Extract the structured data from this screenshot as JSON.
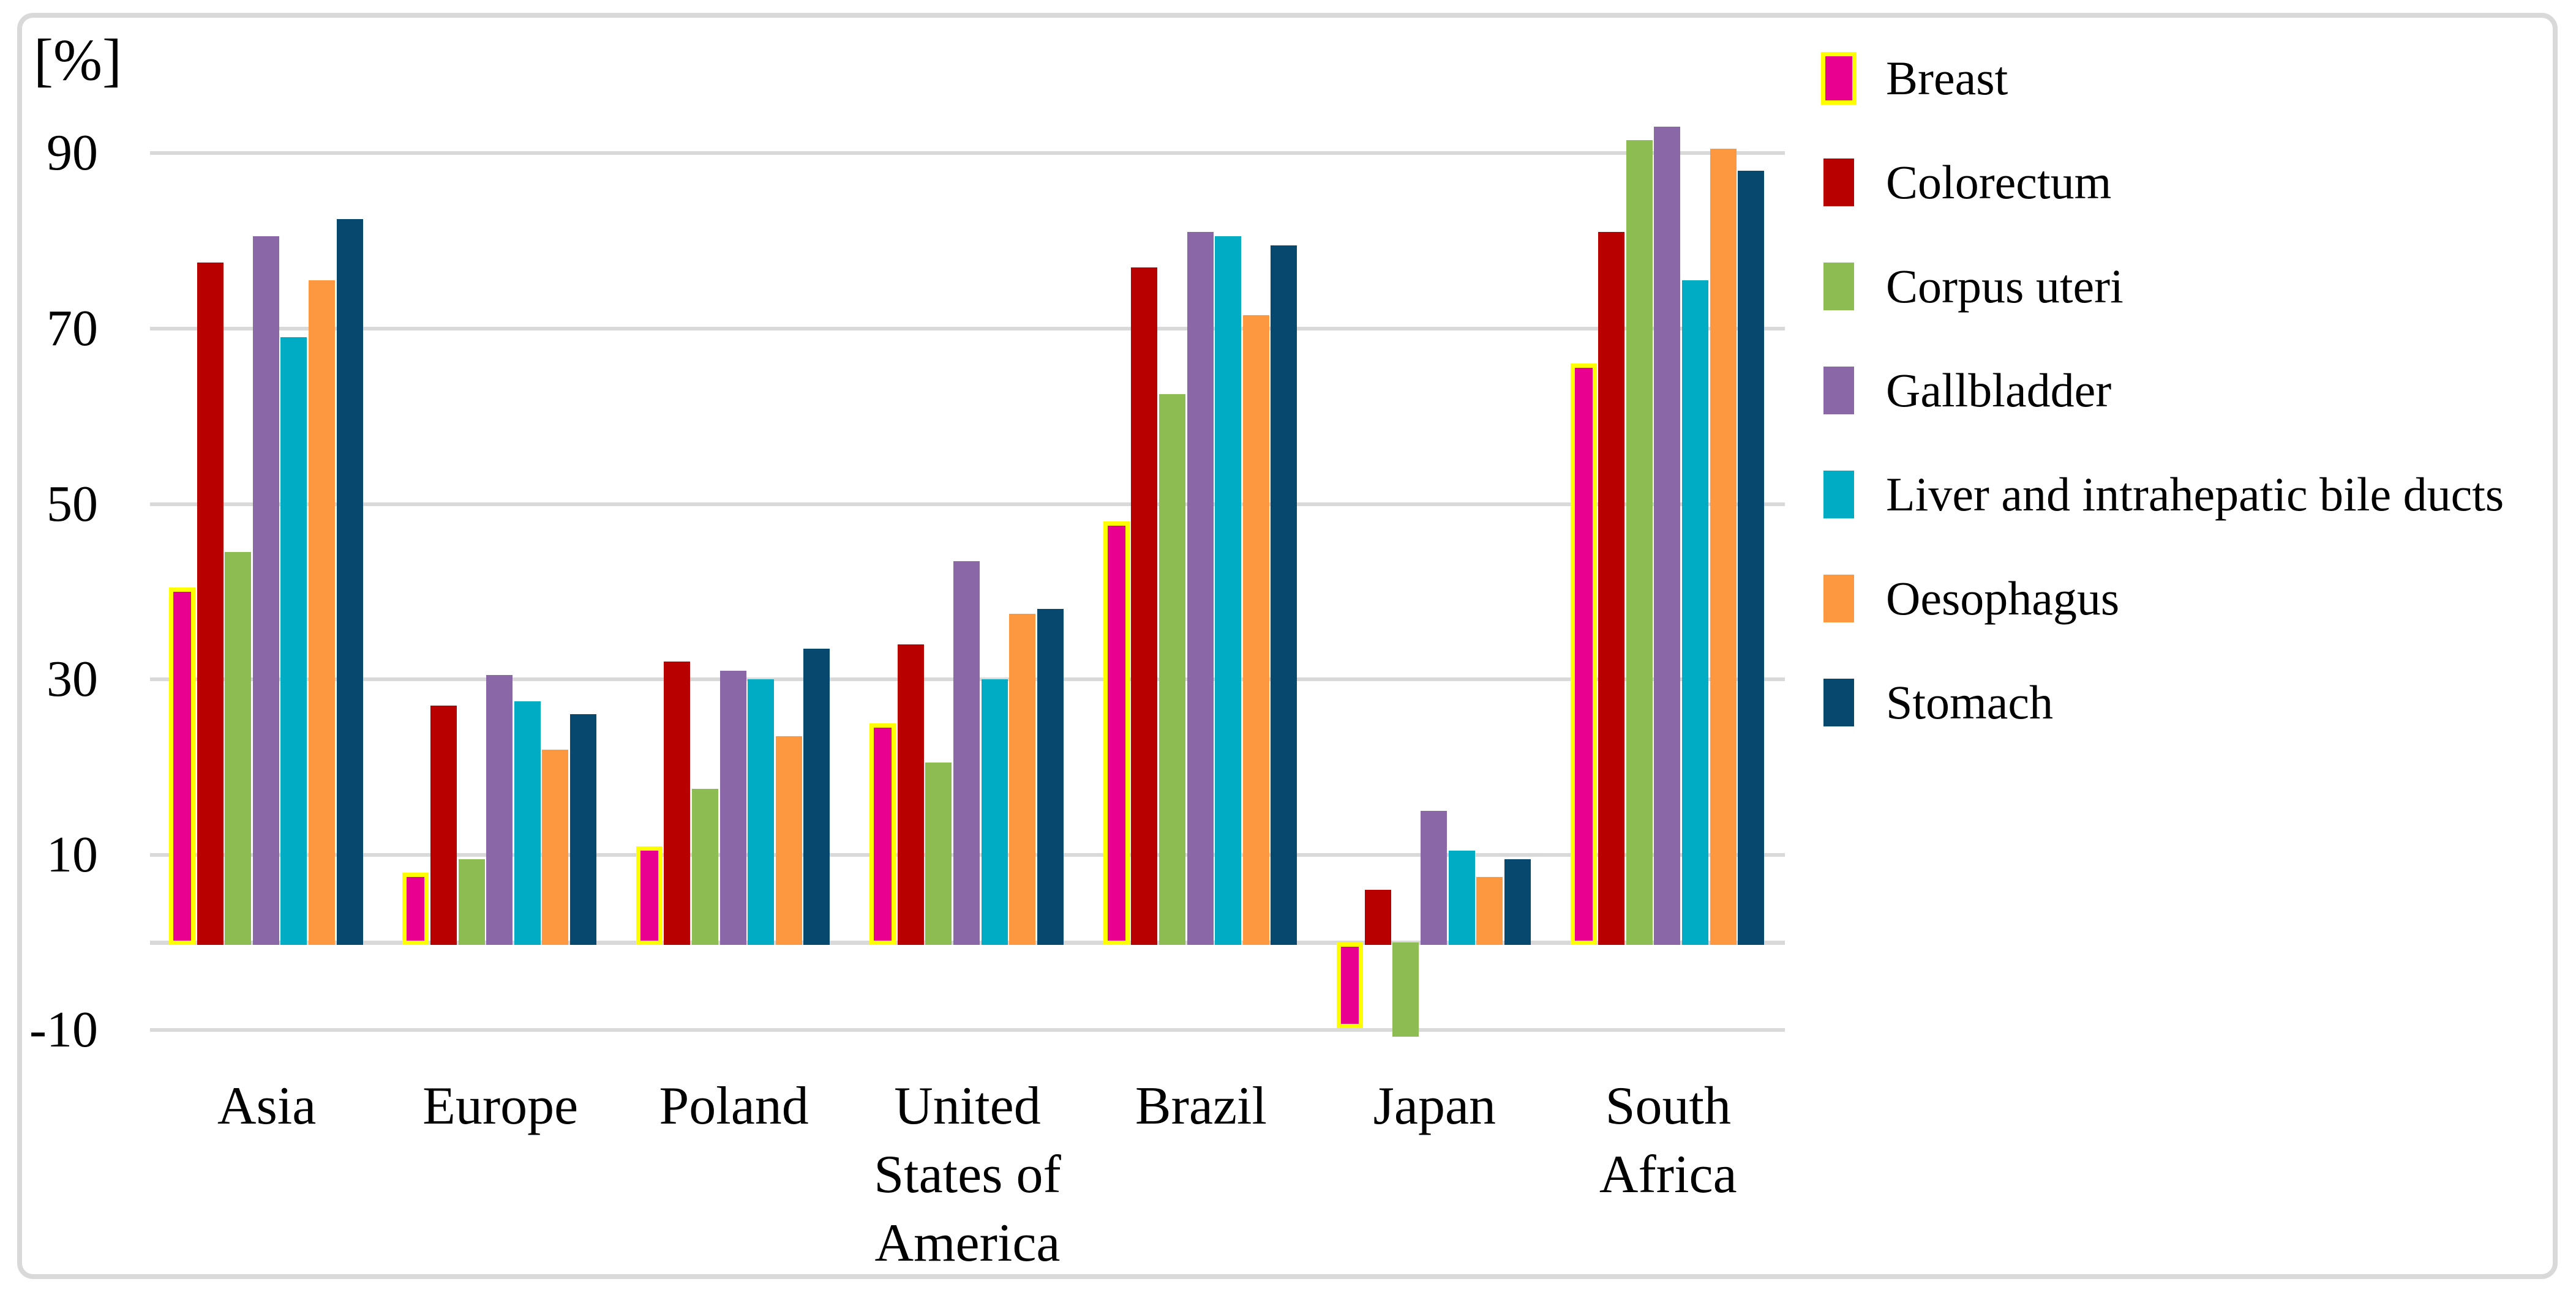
{
  "chart_data": {
    "type": "bar",
    "title": "",
    "unit_label": "[%]",
    "categories": [
      "Asia",
      "Europe",
      "Poland",
      "United States of America",
      "Brazil",
      "Japan",
      "South Africa"
    ],
    "category_lines": [
      [
        "Asia"
      ],
      [
        "Europe"
      ],
      [
        "Poland"
      ],
      [
        "United",
        "States of",
        "America"
      ],
      [
        "Brazil"
      ],
      [
        "Japan"
      ],
      [
        "South",
        "Africa"
      ]
    ],
    "y_ticks": [
      90,
      70,
      50,
      30,
      10,
      -10
    ],
    "ylim": [
      -14,
      97
    ],
    "grid": true,
    "legend_position": "right",
    "series": [
      {
        "name": "Breast",
        "color": "#EA0090",
        "outline": "#FFFF00",
        "values": [
          40,
          7.5,
          10.5,
          24.5,
          47.5,
          -9.5,
          65.5
        ]
      },
      {
        "name": "Colorectum",
        "color": "#B80000",
        "values": [
          77.5,
          27,
          32,
          34,
          77,
          6,
          81
        ]
      },
      {
        "name": "Corpus uteri",
        "color": "#8CBC52",
        "values": [
          44.5,
          9.5,
          17.5,
          20.5,
          62.5,
          -10.5,
          91.5
        ]
      },
      {
        "name": "Gallbladder",
        "color": "#8A67A6",
        "values": [
          80.5,
          30.5,
          31,
          43.5,
          81,
          15,
          93
        ]
      },
      {
        "name": "Liver and intrahepatic bile ducts",
        "color": "#00ACC3",
        "values": [
          69,
          27.5,
          30,
          30,
          80.5,
          10.5,
          75.5
        ]
      },
      {
        "name": "Oesophagus",
        "color": "#FD9840",
        "values": [
          75.5,
          22,
          23.5,
          37.5,
          71.5,
          7.5,
          90.5
        ]
      },
      {
        "name": "Stomach",
        "color": "#07486F",
        "values": [
          82.5,
          26,
          33.5,
          38,
          79.5,
          9.5,
          88
        ]
      }
    ]
  },
  "colors": {
    "gridline": "#D9D9D9",
    "frame_border": "#D9D9D9",
    "background": "#FFFFFF"
  }
}
